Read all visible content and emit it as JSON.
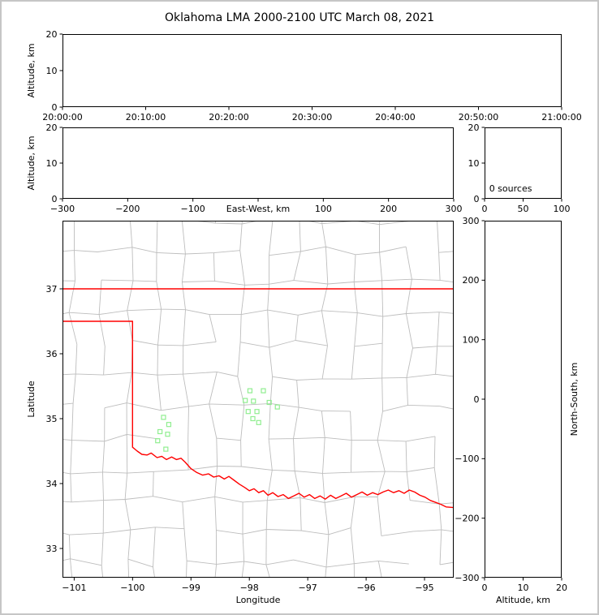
{
  "title": "Oklahoma LMA 2000-2100 UTC March 08, 2021",
  "colors": {
    "background": "#ffffff",
    "frame_border": "#c6c6c6",
    "axis": "#000000",
    "county_line": "#bdbdbd",
    "state_line": "#ff0000",
    "station": "#90ee90"
  },
  "chart_data": [
    {
      "id": "time_height",
      "type": "scatter",
      "xlabel": "",
      "ylabel": "Altitude, km",
      "xlim": [
        0,
        3600
      ],
      "xticks": [
        {
          "v": 0,
          "label": "20:00:00"
        },
        {
          "v": 600,
          "label": "20:10:00"
        },
        {
          "v": 1200,
          "label": "20:20:00"
        },
        {
          "v": 1800,
          "label": "20:30:00"
        },
        {
          "v": 2400,
          "label": "20:40:00"
        },
        {
          "v": 3000,
          "label": "20:50:00"
        },
        {
          "v": 3600,
          "label": "21:00:00"
        }
      ],
      "ylim": [
        0,
        20
      ],
      "yticks": [
        {
          "v": 0,
          "label": "0"
        },
        {
          "v": 10,
          "label": "10"
        },
        {
          "v": 20,
          "label": "20"
        }
      ],
      "points": []
    },
    {
      "id": "ew_height",
      "type": "scatter",
      "xlabel": "East-West, km",
      "xlabel_inline": true,
      "ylabel": "Altitude, km",
      "xlim": [
        -300,
        300
      ],
      "xticks": [
        {
          "v": -300,
          "label": "−300"
        },
        {
          "v": -200,
          "label": "−200"
        },
        {
          "v": -100,
          "label": "−100"
        },
        {
          "v": 0,
          "label": ""
        },
        {
          "v": 100,
          "label": "100"
        },
        {
          "v": 200,
          "label": "200"
        },
        {
          "v": 300,
          "label": "300"
        }
      ],
      "ylim": [
        0,
        20
      ],
      "yticks": [
        {
          "v": 0,
          "label": "0"
        },
        {
          "v": 10,
          "label": "10"
        },
        {
          "v": 20,
          "label": "20"
        }
      ],
      "points": []
    },
    {
      "id": "alt_histogram",
      "type": "histogram",
      "xlabel": "",
      "ylabel": "",
      "xlim": [
        0,
        100
      ],
      "xticks": [
        {
          "v": 0,
          "label": "0"
        },
        {
          "v": 50,
          "label": "50"
        },
        {
          "v": 100,
          "label": "100"
        }
      ],
      "ylim": [
        0,
        20
      ],
      "yticks": [
        {
          "v": 0,
          "label": "0"
        },
        {
          "v": 10,
          "label": "10"
        },
        {
          "v": 20,
          "label": "20"
        }
      ],
      "annotations": [
        {
          "text": "0 sources",
          "fx": 0.06,
          "fy": 0.9
        }
      ],
      "values": []
    },
    {
      "id": "plan_view",
      "type": "map",
      "xlabel": "Longitude",
      "ylabel": "Latitude",
      "xlim": [
        -101.2,
        -94.5
      ],
      "xticks": [
        {
          "v": -101,
          "label": "−101"
        },
        {
          "v": -100,
          "label": "−100"
        },
        {
          "v": -99,
          "label": "−99"
        },
        {
          "v": -98,
          "label": "−98"
        },
        {
          "v": -97,
          "label": "−97"
        },
        {
          "v": -96,
          "label": "−96"
        },
        {
          "v": -95,
          "label": "−95"
        }
      ],
      "ylim": [
        32.55,
        38.05
      ],
      "yticks": [
        {
          "v": 33,
          "label": "33"
        },
        {
          "v": 34,
          "label": "34"
        },
        {
          "v": 35,
          "label": "35"
        },
        {
          "v": 36,
          "label": "36"
        },
        {
          "v": 37,
          "label": "37"
        }
      ],
      "county_grid": {
        "lon_min": -101.5,
        "lon_max": -94.2,
        "lat_min": 32.3,
        "lat_max": 38.3,
        "cell_deg": 0.48,
        "jitter": 0.14,
        "keep": 0.84,
        "seed": 20210308
      },
      "state_border": [
        [
          [
            -101.2,
            37.0
          ],
          [
            -94.5,
            37.0
          ]
        ],
        [
          [
            -101.2,
            36.5
          ],
          [
            -100.0,
            36.5
          ],
          [
            -100.0,
            34.56
          ],
          [
            -99.92,
            34.5
          ],
          [
            -99.84,
            34.45
          ],
          [
            -99.75,
            34.44
          ],
          [
            -99.68,
            34.47
          ],
          [
            -99.58,
            34.4
          ],
          [
            -99.5,
            34.42
          ],
          [
            -99.42,
            34.37
          ],
          [
            -99.33,
            34.41
          ],
          [
            -99.25,
            34.37
          ],
          [
            -99.17,
            34.39
          ],
          [
            -99.1,
            34.33
          ],
          [
            -99.0,
            34.23
          ],
          [
            -98.9,
            34.17
          ],
          [
            -98.8,
            34.13
          ],
          [
            -98.7,
            34.15
          ],
          [
            -98.61,
            34.1
          ],
          [
            -98.52,
            34.12
          ],
          [
            -98.43,
            34.07
          ],
          [
            -98.35,
            34.11
          ],
          [
            -98.26,
            34.05
          ],
          [
            -98.17,
            33.99
          ],
          [
            -98.08,
            33.94
          ],
          [
            -98.0,
            33.89
          ],
          [
            -97.92,
            33.92
          ],
          [
            -97.84,
            33.86
          ],
          [
            -97.76,
            33.89
          ],
          [
            -97.68,
            33.82
          ],
          [
            -97.6,
            33.86
          ],
          [
            -97.51,
            33.8
          ],
          [
            -97.42,
            33.83
          ],
          [
            -97.33,
            33.77
          ],
          [
            -97.24,
            33.81
          ],
          [
            -97.15,
            33.85
          ],
          [
            -97.06,
            33.79
          ],
          [
            -96.97,
            33.83
          ],
          [
            -96.88,
            33.77
          ],
          [
            -96.79,
            33.81
          ],
          [
            -96.7,
            33.76
          ],
          [
            -96.61,
            33.82
          ],
          [
            -96.52,
            33.77
          ],
          [
            -96.43,
            33.81
          ],
          [
            -96.34,
            33.85
          ],
          [
            -96.25,
            33.79
          ],
          [
            -96.16,
            33.83
          ],
          [
            -96.07,
            33.87
          ],
          [
            -95.98,
            33.82
          ],
          [
            -95.89,
            33.86
          ],
          [
            -95.8,
            33.83
          ],
          [
            -95.71,
            33.87
          ],
          [
            -95.62,
            33.9
          ],
          [
            -95.53,
            33.86
          ],
          [
            -95.44,
            33.89
          ],
          [
            -95.35,
            33.85
          ],
          [
            -95.26,
            33.9
          ],
          [
            -95.17,
            33.87
          ],
          [
            -95.08,
            33.82
          ],
          [
            -94.99,
            33.79
          ],
          [
            -94.9,
            33.74
          ],
          [
            -94.81,
            33.71
          ],
          [
            -94.72,
            33.68
          ],
          [
            -94.63,
            33.64
          ],
          [
            -94.5,
            33.63
          ]
        ]
      ],
      "stations": [
        [
          -97.99,
          35.43
        ],
        [
          -97.76,
          35.43
        ],
        [
          -98.07,
          35.28
        ],
        [
          -97.93,
          35.27
        ],
        [
          -97.66,
          35.25
        ],
        [
          -97.52,
          35.18
        ],
        [
          -98.02,
          35.11
        ],
        [
          -97.87,
          35.11
        ],
        [
          -97.94,
          35.0
        ],
        [
          -97.84,
          34.94
        ],
        [
          -99.47,
          35.02
        ],
        [
          -99.38,
          34.91
        ],
        [
          -99.53,
          34.8
        ],
        [
          -99.4,
          34.76
        ],
        [
          -99.57,
          34.66
        ],
        [
          -99.43,
          34.53
        ]
      ],
      "points": []
    },
    {
      "id": "ns_height",
      "type": "scatter",
      "xlabel": "Altitude, km",
      "ylabel": "North-South, km",
      "ylabel_side": "right",
      "xlim": [
        0,
        20
      ],
      "xticks": [
        {
          "v": 0,
          "label": "0"
        },
        {
          "v": 10,
          "label": "10"
        },
        {
          "v": 20,
          "label": "20"
        }
      ],
      "ylim": [
        -300,
        300
      ],
      "yticks": [
        {
          "v": 300,
          "label": "300"
        },
        {
          "v": 200,
          "label": "200"
        },
        {
          "v": 100,
          "label": "100"
        },
        {
          "v": 0,
          "label": "0"
        },
        {
          "v": -100,
          "label": "−100"
        },
        {
          "v": -200,
          "label": "−200"
        },
        {
          "v": -300,
          "label": "−300"
        }
      ],
      "points": []
    }
  ]
}
